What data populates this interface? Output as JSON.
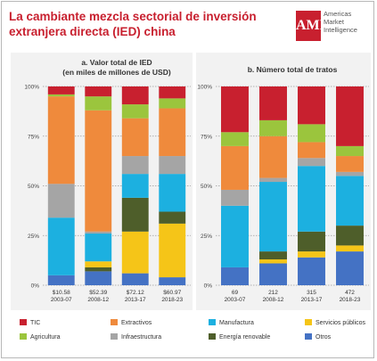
{
  "header": {
    "title": "La cambiante mezcla sectorial de inversión extranjera directa (IED) china",
    "logo_mark": "AMI",
    "logo_lines": [
      "Americas",
      "Market",
      "Intelligence"
    ]
  },
  "chart_data": [
    {
      "type": "bar",
      "stacked": true,
      "normalized": true,
      "title": "a. Valor total de IED",
      "subtitle": "(en miles de millones de USD)",
      "ylim": [
        0,
        100
      ],
      "yticks": [
        "0%",
        "25%",
        "50%",
        "75%",
        "100%"
      ],
      "grid": true,
      "categories": [
        "2003-07",
        "2008-12",
        "2013-17",
        "2018-23"
      ],
      "totals": [
        "$10.58",
        "$52.39",
        "$72.12",
        "$60.97"
      ],
      "series": [
        {
          "name": "Otros",
          "color": "#4472c4",
          "values": [
            5,
            7,
            6,
            4
          ]
        },
        {
          "name": "Energía renovable",
          "color": "#4e5e2a",
          "values": [
            0,
            2,
            0,
            0
          ]
        },
        {
          "name": "Servicios públicos",
          "color": "#f5c518",
          "values": [
            0,
            3,
            21,
            27
          ]
        },
        {
          "name": "Energía renovable",
          "color": "#4e5e2a",
          "values": [
            0,
            0,
            17,
            6
          ]
        },
        {
          "name": "Manufactura",
          "color": "#1cb0e0",
          "values": [
            29,
            14,
            12,
            19
          ]
        },
        {
          "name": "Infraestructura",
          "color": "#a5a5a5",
          "values": [
            17,
            1,
            9,
            9
          ]
        },
        {
          "name": "Extractivos",
          "color": "#ef8a3c",
          "values": [
            44,
            61,
            19,
            24
          ]
        },
        {
          "name": "Agricultura",
          "color": "#9bc53d",
          "values": [
            1,
            7,
            7,
            5
          ]
        },
        {
          "name": "TIC",
          "color": "#c8202f",
          "values": [
            4,
            5,
            9,
            6
          ]
        }
      ]
    },
    {
      "type": "bar",
      "stacked": true,
      "normalized": true,
      "title": "b. Número total de tratos",
      "ylim": [
        0,
        100
      ],
      "yticks": [
        "0%",
        "25%",
        "50%",
        "75%",
        "100%"
      ],
      "grid": true,
      "categories": [
        "2003-07",
        "2008-12",
        "2013-17",
        "2018-23"
      ],
      "totals": [
        "69",
        "212",
        "315",
        "472"
      ],
      "series": [
        {
          "name": "Otros",
          "color": "#4472c4",
          "values": [
            9,
            11,
            14,
            17
          ]
        },
        {
          "name": "Servicios públicos",
          "color": "#f5c518",
          "values": [
            0,
            2,
            3,
            3
          ]
        },
        {
          "name": "Energía renovable",
          "color": "#4e5e2a",
          "values": [
            0,
            4,
            10,
            10
          ]
        },
        {
          "name": "Manufactura",
          "color": "#1cb0e0",
          "values": [
            31,
            35,
            33,
            25
          ]
        },
        {
          "name": "Infraestructura",
          "color": "#a5a5a5",
          "values": [
            8,
            2,
            4,
            2
          ]
        },
        {
          "name": "Extractivos",
          "color": "#ef8a3c",
          "values": [
            22,
            21,
            8,
            8
          ]
        },
        {
          "name": "Agricultura",
          "color": "#9bc53d",
          "values": [
            7,
            8,
            9,
            5
          ]
        },
        {
          "name": "TIC",
          "color": "#c8202f",
          "values": [
            23,
            17,
            19,
            30
          ]
        }
      ]
    }
  ],
  "legend": [
    {
      "label": "TIC",
      "color": "#c8202f"
    },
    {
      "label": "Extractivos",
      "color": "#ef8a3c"
    },
    {
      "label": "Manufactura",
      "color": "#1cb0e0"
    },
    {
      "label": "Servicios públicos",
      "color": "#f5c518"
    },
    {
      "label": "Agricultura",
      "color": "#9bc53d"
    },
    {
      "label": "Infraestructura",
      "color": "#a5a5a5"
    },
    {
      "label": "Energía renovable",
      "color": "#4e5e2a"
    },
    {
      "label": "Otros",
      "color": "#4472c4"
    }
  ]
}
